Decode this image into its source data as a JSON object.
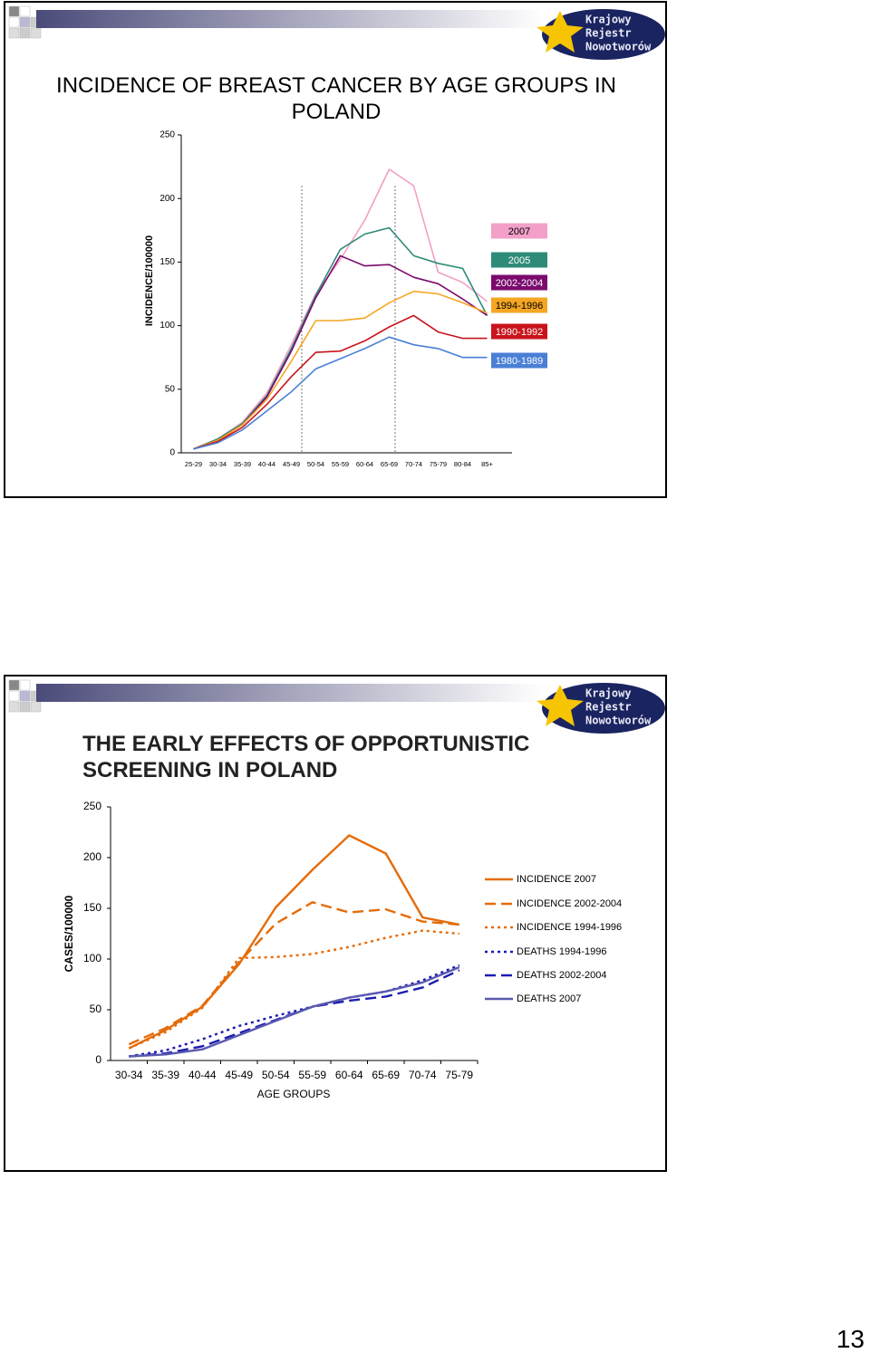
{
  "logo": [
    "Krajowy",
    "Rejestr",
    "Nowotworów"
  ],
  "page_number": "13",
  "chart_data": [
    {
      "type": "line",
      "title": "INCIDENCE OF BREAST CANCER BY AGE GROUPS IN POLAND",
      "y_label": "INCIDENCE/100000",
      "categories": [
        "25-29",
        "30-34",
        "35-39",
        "40-44",
        "45-49",
        "50-54",
        "55-59",
        "60-64",
        "65-69",
        "70-74",
        "75-79",
        "80-84",
        "85+"
      ],
      "ylim": [
        0,
        250
      ],
      "yticks": [
        0,
        50,
        100,
        150,
        200,
        250
      ],
      "series": [
        {
          "name": "2007",
          "color": "#f2a0c8",
          "style": "solid",
          "values": [
            3,
            11,
            24,
            47,
            85,
            125,
            152,
            183,
            223,
            210,
            142,
            134,
            119
          ]
        },
        {
          "name": "2005",
          "color": "#2e8b78",
          "style": "solid",
          "values": [
            3,
            11,
            23,
            45,
            82,
            124,
            160,
            172,
            177,
            155,
            149,
            145,
            108
          ]
        },
        {
          "name": "2002-2004",
          "color": "#7b0a6e",
          "style": "solid",
          "values": [
            3,
            10,
            22,
            44,
            80,
            122,
            155,
            147,
            148,
            138,
            133,
            121,
            108
          ]
        },
        {
          "name": "1994-1996",
          "color": "#f5a623",
          "style": "solid",
          "values": [
            3,
            10,
            22,
            42,
            72,
            104,
            104,
            106,
            118,
            127,
            125,
            118,
            110
          ]
        },
        {
          "name": "1990-1992",
          "color": "#c8141c",
          "style": "solid",
          "values": [
            3,
            9,
            20,
            38,
            60,
            79,
            80,
            88,
            99,
            108,
            95,
            90,
            90
          ]
        },
        {
          "name": "1980-1989",
          "color": "#4a7fd6",
          "style": "solid",
          "values": [
            3,
            8,
            18,
            33,
            48,
            66,
            74,
            82,
            91,
            85,
            82,
            75,
            75
          ]
        }
      ]
    },
    {
      "type": "line",
      "title": "THE EARLY EFFECTS OF OPPORTUNISTIC SCREENING IN POLAND",
      "x_label": "AGE GROUPS",
      "y_label": "CASES/100000",
      "categories": [
        "30-34",
        "35-39",
        "40-44",
        "45-49",
        "50-54",
        "55-59",
        "60-64",
        "65-69",
        "70-74",
        "75-79"
      ],
      "ylim": [
        0,
        250
      ],
      "yticks": [
        0,
        50,
        100,
        150,
        200,
        250
      ],
      "series": [
        {
          "name": "INCIDENCE 2007",
          "color": "#e46c0a",
          "style": "solid",
          "values": [
            12,
            30,
            53,
            95,
            151,
            188,
            222,
            204,
            141,
            134
          ]
        },
        {
          "name": "INCIDENCE 2002-2004",
          "color": "#e46c0a",
          "style": "dashed",
          "values": [
            16,
            32,
            54,
            97,
            135,
            156,
            146,
            149,
            137,
            134
          ]
        },
        {
          "name": "INCIDENCE 1994-1996",
          "color": "#e46c0a",
          "style": "dotted",
          "values": [
            12,
            28,
            52,
            101,
            102,
            105,
            112,
            121,
            128,
            125
          ]
        },
        {
          "name": "DEATHS 1994-1996",
          "color": "#1c1cb0",
          "style": "dotted",
          "values": [
            4,
            10,
            21,
            34,
            44,
            53,
            62,
            68,
            79,
            94
          ]
        },
        {
          "name": "DEATHS 2002-2004",
          "color": "#1c1cb0",
          "style": "dashed",
          "values": [
            4,
            7,
            14,
            27,
            40,
            53,
            59,
            63,
            72,
            89
          ]
        },
        {
          "name": "DEATHS 2007",
          "color": "#5a5ab0",
          "style": "solid",
          "values": [
            4,
            6,
            11,
            25,
            39,
            53,
            62,
            68,
            77,
            92
          ]
        }
      ]
    }
  ]
}
